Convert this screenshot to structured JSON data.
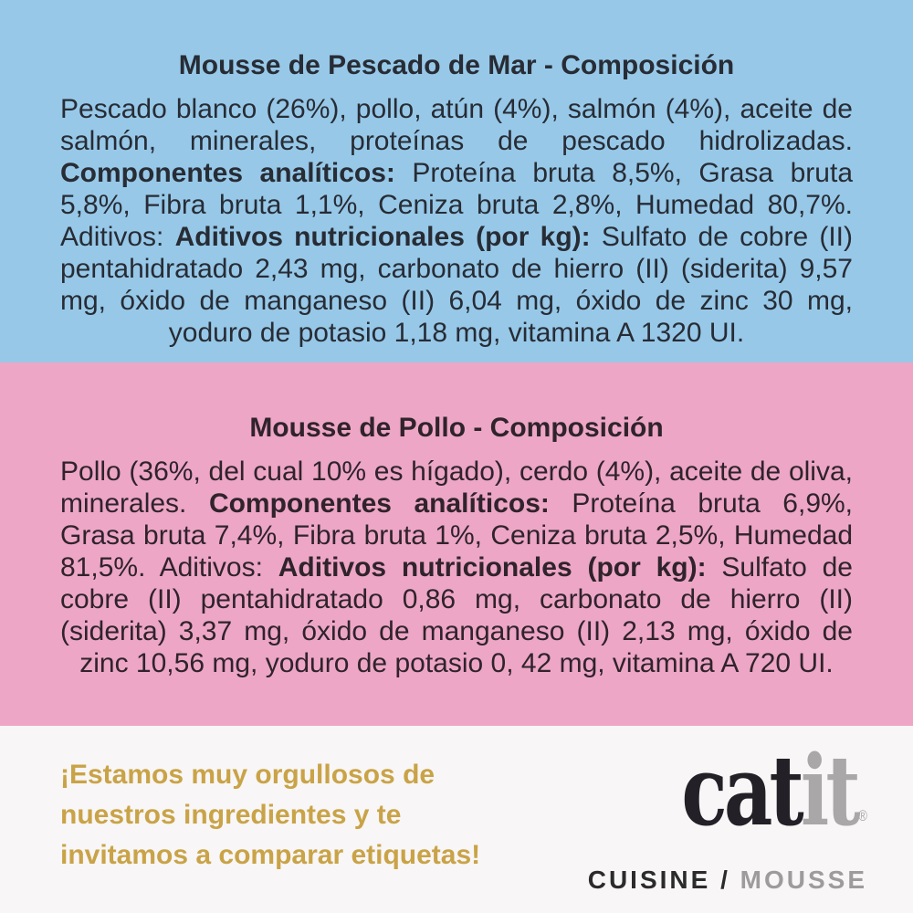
{
  "colors": {
    "background_blue": "#97C8E8",
    "background_pink": "#EDA6C6",
    "background_footer": "#F8F6F6",
    "text_dark_blue_section": "#272C35",
    "text_dark_pink_section": "#30232C",
    "tagline_gold": "#C9A347",
    "logo_black": "#232027",
    "logo_gray": "#A9A7A8"
  },
  "fish": {
    "title": "Mousse de Pescado de Mar - Composición",
    "p1": "Pescado blanco (26%), pollo, atún (4%), salmón (4%), aceite de salmón, minerales, proteínas de pescado hidrolizadas. ",
    "b1": "Componentes analíticos: ",
    "p2": "Proteína bruta 8,5%, Grasa bruta 5,8%, Fibra bruta 1,1%, Ceniza bruta 2,8%, Humedad 80,7%. Aditivos: ",
    "b2": "Aditivos nutricionales (por kg): ",
    "p3": "Sulfato de cobre (II) pentahidratado 2,43 mg, carbonato de hierro (II) (siderita) 9,57 mg, óxido de manganeso (II) 6,04 mg, óxido de zinc 30 mg, yoduro de potasio 1,18 mg, vitamina A 1320 UI."
  },
  "chicken": {
    "title": "Mousse de Pollo - Composición",
    "p1": "Pollo (36%, del cual 10% es hígado), cerdo (4%), aceite de oliva, minerales. ",
    "b1": "Componentes analíticos: ",
    "p2": "Proteína bruta 6,9%, Grasa bruta 7,4%, Fibra bruta 1%, Ceniza bruta 2,5%, Humedad 81,5%. Aditivos: ",
    "b2": "Aditivos nutricionales (por kg): ",
    "p3": "Sulfato de cobre (II) pentahidratado 0,86 mg, carbonato de hierro (II) (siderita) 3,37 mg, óxido de manganeso (II) 2,13 mg, óxido de zinc 10,56 mg, yoduro de potasio 0, 42 mg, vitamina A 720 UI."
  },
  "footer": {
    "tagline_line1": "¡Estamos muy orgullosos de",
    "tagline_line2": "nuestros ingredientes y te",
    "tagline_line3": "invitamos a comparar etiquetas!",
    "logo": {
      "cat": "cat",
      "it": "it",
      "registered": "®",
      "sub_dark": "CUISINE /",
      "sub_gray": "MOUSSE"
    }
  }
}
